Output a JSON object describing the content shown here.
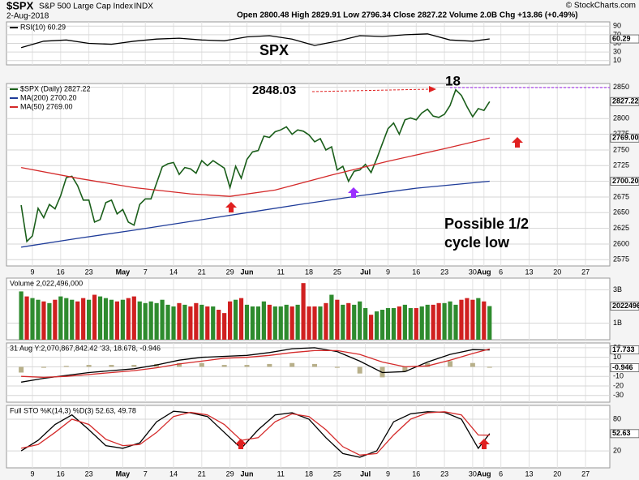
{
  "header": {
    "symbol": "$SPX",
    "name": "S&P 500 Large Cap Index",
    "exchange": "INDX",
    "date": "2-Aug-2018",
    "quote": "Open 2800.48   High 2829.91   Low 2796.34   Close 2827.22   Volume 2.0B   Chg +13.86 (+0.49%)",
    "watermark": "© StockCharts.com"
  },
  "chart_data": [
    {
      "type": "line",
      "ylim": [
        0,
        100
      ],
      "yticks": [
        10,
        30,
        50,
        70,
        90
      ],
      "markers": [
        {
          "value": 60.29,
          "label": "60.29"
        }
      ],
      "series": [
        {
          "name": "RSI(10) 60.29",
          "color": "#000000",
          "x": [
            0,
            4,
            8,
            12,
            16,
            20,
            24,
            28,
            32,
            36,
            40,
            44,
            48,
            52,
            56,
            60,
            64,
            68,
            72,
            76,
            80,
            83
          ],
          "values": [
            40,
            55,
            58,
            50,
            48,
            55,
            60,
            62,
            58,
            56,
            65,
            68,
            60,
            45,
            55,
            68,
            66,
            70,
            72,
            58,
            55,
            60.29
          ]
        }
      ]
    },
    {
      "type": "line",
      "ylim": [
        2565,
        2856
      ],
      "yticks": [
        2575,
        2600,
        2625,
        2650,
        2675,
        2700,
        2725,
        2750,
        2775,
        2800,
        2850
      ],
      "xlim": [
        -2.6,
        104.3
      ],
      "xticks": [
        {
          "value": 2,
          "label": "9"
        },
        {
          "value": 7,
          "label": "16"
        },
        {
          "value": 12,
          "label": "23"
        },
        {
          "value": 18,
          "label": "May"
        },
        {
          "value": 22,
          "label": "7"
        },
        {
          "value": 27,
          "label": "14"
        },
        {
          "value": 32,
          "label": "21"
        },
        {
          "value": 37,
          "label": "29"
        },
        {
          "value": 40,
          "label": "Jun"
        },
        {
          "value": 46,
          "label": "11"
        },
        {
          "value": 51,
          "label": "18"
        },
        {
          "value": 56,
          "label": "25"
        },
        {
          "value": 61,
          "label": "Jul"
        },
        {
          "value": 65,
          "label": "9"
        },
        {
          "value": 70,
          "label": "16"
        },
        {
          "value": 75,
          "label": "23"
        },
        {
          "value": 80,
          "label": "30"
        },
        {
          "value": 82,
          "label": "Aug"
        },
        {
          "value": 85,
          "label": "6"
        },
        {
          "value": 90,
          "label": "13"
        },
        {
          "value": 95,
          "label": "20"
        },
        {
          "value": 100,
          "label": "27"
        }
      ],
      "markers": [
        {
          "value": 2827.22,
          "label": "2827.22"
        },
        {
          "value": 2769,
          "label": "2769.00"
        },
        {
          "value": 2700.2,
          "label": "2700.20"
        }
      ],
      "annotations": [
        {
          "text": "SPX",
          "color": "#f39c12"
        },
        {
          "text": "2848.03",
          "color": "#e02020"
        },
        {
          "text": "18",
          "color": "#a020f0"
        },
        {
          "text": "Possible 1/2",
          "color": "#e02020"
        },
        {
          "text": "cycle low",
          "color": "#e02020"
        }
      ],
      "series": [
        {
          "name": "$SPX (Daily) 2827.22",
          "color": "#1a5e1a",
          "values": [
            2662,
            2604,
            2613,
            2657,
            2642,
            2663,
            2656,
            2677,
            2706,
            2708,
            2693,
            2670,
            2670,
            2635,
            2639,
            2666,
            2670,
            2648,
            2655,
            2635,
            2630,
            2663,
            2672,
            2672,
            2697,
            2723,
            2728,
            2730,
            2711,
            2722,
            2720,
            2713,
            2733,
            2725,
            2733,
            2727,
            2721,
            2690,
            2724,
            2705,
            2735,
            2747,
            2749,
            2772,
            2770,
            2779,
            2782,
            2787,
            2775,
            2782,
            2780,
            2774,
            2763,
            2768,
            2750,
            2755,
            2718,
            2724,
            2700,
            2716,
            2718,
            2727,
            2714,
            2736,
            2760,
            2784,
            2793,
            2775,
            2798,
            2801,
            2798,
            2809,
            2815,
            2804,
            2802,
            2807,
            2821,
            2846,
            2837,
            2819,
            2803,
            2816,
            2813,
            2827.22
          ]
        },
        {
          "name": "MA(200) 2700.20",
          "color": "#1f3c99",
          "x": [
            0,
            10,
            20,
            30,
            40,
            50,
            60,
            70,
            83
          ],
          "values": [
            2595,
            2609,
            2622,
            2636,
            2650,
            2664,
            2677,
            2689,
            2700.2
          ]
        },
        {
          "name": "MA(50) 2769.00",
          "color": "#d42a2a",
          "x": [
            0,
            10,
            20,
            30,
            37,
            45,
            55,
            65,
            75,
            83
          ],
          "values": [
            2722,
            2705,
            2690,
            2680,
            2676,
            2686,
            2710,
            2732,
            2752,
            2769
          ]
        }
      ]
    },
    {
      "type": "bar",
      "title": "Volume 2,022,496,000",
      "ylim": [
        0,
        3.7
      ],
      "yticks": [
        {
          "value": 1,
          "label": "1B"
        },
        {
          "value": 3,
          "label": "3B"
        }
      ],
      "markers": [
        {
          "value": 2.022496,
          "label": "2022496"
        }
      ],
      "up_color": "#2e8b2e",
      "down_color": "#d02020",
      "values": [
        2.9,
        2.6,
        2.5,
        2.4,
        2.3,
        2.2,
        2.4,
        2.6,
        2.5,
        2.4,
        2.3,
        2.5,
        2.4,
        2.7,
        2.6,
        2.5,
        2.4,
        2.3,
        2.4,
        2.5,
        2.6,
        2.3,
        2.2,
        2.3,
        2.2,
        2.4,
        2.1,
        2.0,
        2.2,
        2.1,
        2.0,
        2.2,
        2.1,
        2.0,
        2.0,
        1.8,
        1.6,
        2.3,
        2.4,
        2.5,
        2.1,
        2.0,
        2.0,
        2.3,
        2.1,
        2.0,
        2.0,
        2.1,
        2.0,
        2.1,
        3.4,
        2.0,
        2.0,
        2.0,
        2.2,
        2.7,
        2.4,
        2.1,
        2.2,
        2.1,
        2.3,
        1.9,
        1.5,
        1.7,
        1.8,
        1.9,
        1.9,
        2.0,
        2.1,
        1.9,
        1.9,
        2.0,
        2.1,
        2.1,
        2.2,
        2.2,
        2.3,
        2.1,
        2.4,
        2.5,
        2.4,
        2.5,
        2.3,
        2.02
      ]
    },
    {
      "type": "line",
      "title": "31 Aug Y:2,070,867,842.42 ‘33, 18.678, -0.946",
      "ylim": [
        -37,
        25
      ],
      "yticks": [
        -30,
        -20,
        -10,
        0,
        10,
        20
      ],
      "markers": [
        {
          "value": 17.733,
          "label": "17.733"
        },
        {
          "value": -0.946,
          "label": "-0.946"
        }
      ],
      "series": [
        {
          "kind": "histogram",
          "color": "#b8b08a",
          "x": [
            0,
            4,
            8,
            12,
            16,
            20,
            24,
            28,
            32,
            36,
            40,
            44,
            48,
            52,
            56,
            60,
            64,
            68,
            72,
            76,
            80,
            83
          ],
          "values": [
            -6,
            -1,
            1,
            2,
            2,
            2,
            3,
            4,
            4,
            2,
            2,
            3,
            4,
            3,
            -1,
            -7,
            -11,
            -5,
            4,
            6,
            4,
            -0.946
          ]
        },
        {
          "color": "#000000",
          "x": [
            0,
            4,
            8,
            12,
            16,
            20,
            24,
            28,
            32,
            36,
            40,
            44,
            48,
            52,
            56,
            60,
            64,
            68,
            72,
            76,
            80,
            83
          ],
          "values": [
            -16,
            -12,
            -9,
            -6,
            -4,
            -2,
            2,
            7,
            10,
            11,
            12,
            15,
            19,
            20,
            16,
            6,
            -6,
            -5,
            5,
            13,
            18,
            17.733
          ]
        },
        {
          "color": "#d42a2a",
          "x": [
            0,
            4,
            8,
            12,
            16,
            20,
            24,
            28,
            32,
            36,
            40,
            44,
            48,
            52,
            56,
            60,
            64,
            68,
            72,
            76,
            80,
            83
          ],
          "values": [
            -10,
            -11,
            -10,
            -8,
            -6,
            -4,
            -1,
            3,
            6,
            9,
            10,
            12,
            15,
            17,
            17,
            13,
            5,
            0,
            1,
            7,
            14,
            18.678
          ]
        }
      ]
    },
    {
      "type": "line",
      "title": "Full STO %K(14,3) %D(3) 52.63, 49.78",
      "ylim": [
        -12,
        106
      ],
      "yticks": [
        20,
        80
      ],
      "markers": [
        {
          "value": 52.63,
          "label": "52.63"
        }
      ],
      "series": [
        {
          "color": "#000000",
          "x": [
            0,
            3,
            6,
            9,
            12,
            15,
            18,
            21,
            24,
            27,
            30,
            33,
            36,
            39,
            42,
            45,
            48,
            51,
            54,
            57,
            60,
            63,
            66,
            69,
            72,
            75,
            78,
            81,
            83
          ],
          "values": [
            20,
            40,
            70,
            88,
            60,
            30,
            25,
            35,
            75,
            95,
            92,
            85,
            55,
            25,
            60,
            88,
            92,
            80,
            45,
            15,
            8,
            20,
            75,
            90,
            94,
            93,
            80,
            25,
            52.63
          ]
        },
        {
          "color": "#d42a2a",
          "x": [
            0,
            3,
            6,
            9,
            12,
            15,
            18,
            21,
            24,
            27,
            30,
            33,
            36,
            39,
            42,
            45,
            48,
            51,
            54,
            57,
            60,
            63,
            66,
            69,
            72,
            75,
            78,
            81,
            83
          ],
          "values": [
            25,
            32,
            55,
            80,
            70,
            42,
            30,
            32,
            55,
            85,
            93,
            88,
            70,
            40,
            45,
            75,
            90,
            85,
            60,
            28,
            12,
            15,
            50,
            80,
            92,
            94,
            88,
            50,
            49.78
          ]
        }
      ]
    }
  ]
}
